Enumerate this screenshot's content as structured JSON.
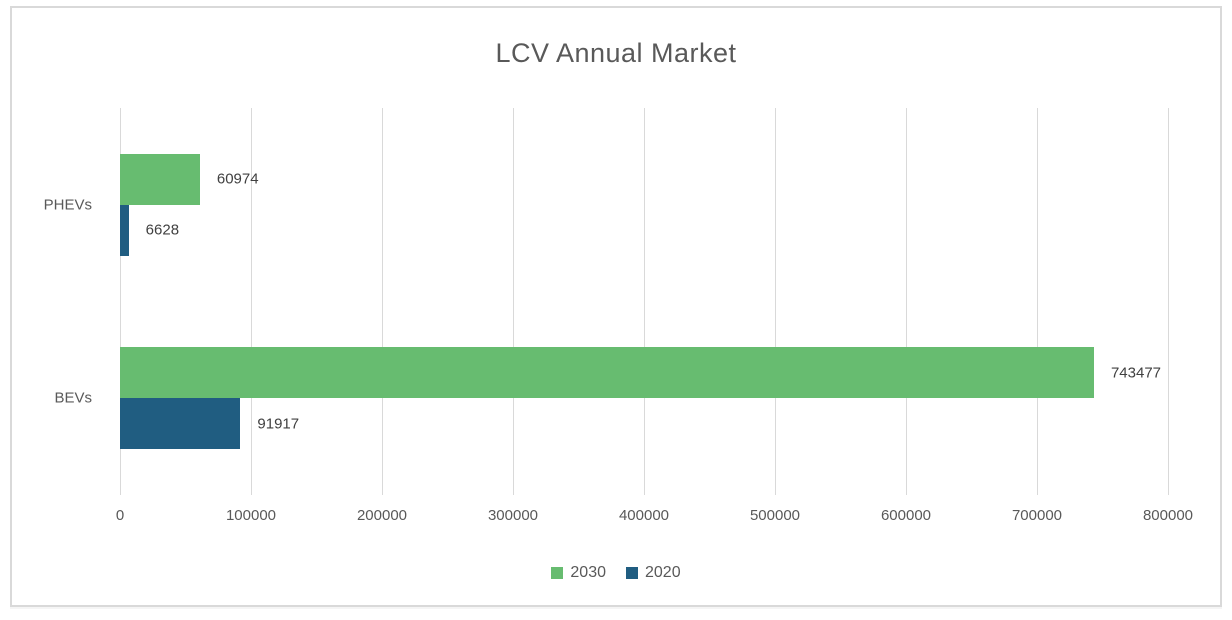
{
  "chart_data": {
    "type": "bar",
    "orientation": "horizontal",
    "title": "LCV Annual Market",
    "categories": [
      "PHEVs",
      "BEVs"
    ],
    "series": [
      {
        "name": "2030",
        "color": "#67BC70",
        "values": [
          60974,
          743477
        ]
      },
      {
        "name": "2020",
        "color": "#205D81",
        "values": [
          6628,
          91917
        ]
      }
    ],
    "data_labels": {
      "PHEVs": {
        "2030": "60974",
        "2020": "6628"
      },
      "BEVs": {
        "2030": "743477",
        "2020": "91917"
      }
    },
    "xlabel": "",
    "ylabel": "",
    "xlim": [
      0,
      800000
    ],
    "x_ticks": [
      0,
      100000,
      200000,
      300000,
      400000,
      500000,
      600000,
      700000,
      800000
    ],
    "grid": "vertical",
    "legend_position": "bottom",
    "colors": {
      "gridline": "#D9D9D9",
      "frame_border": "#D9D9D9",
      "title_text": "#595959",
      "axis_text": "#595959",
      "data_label_text": "#404040"
    }
  }
}
